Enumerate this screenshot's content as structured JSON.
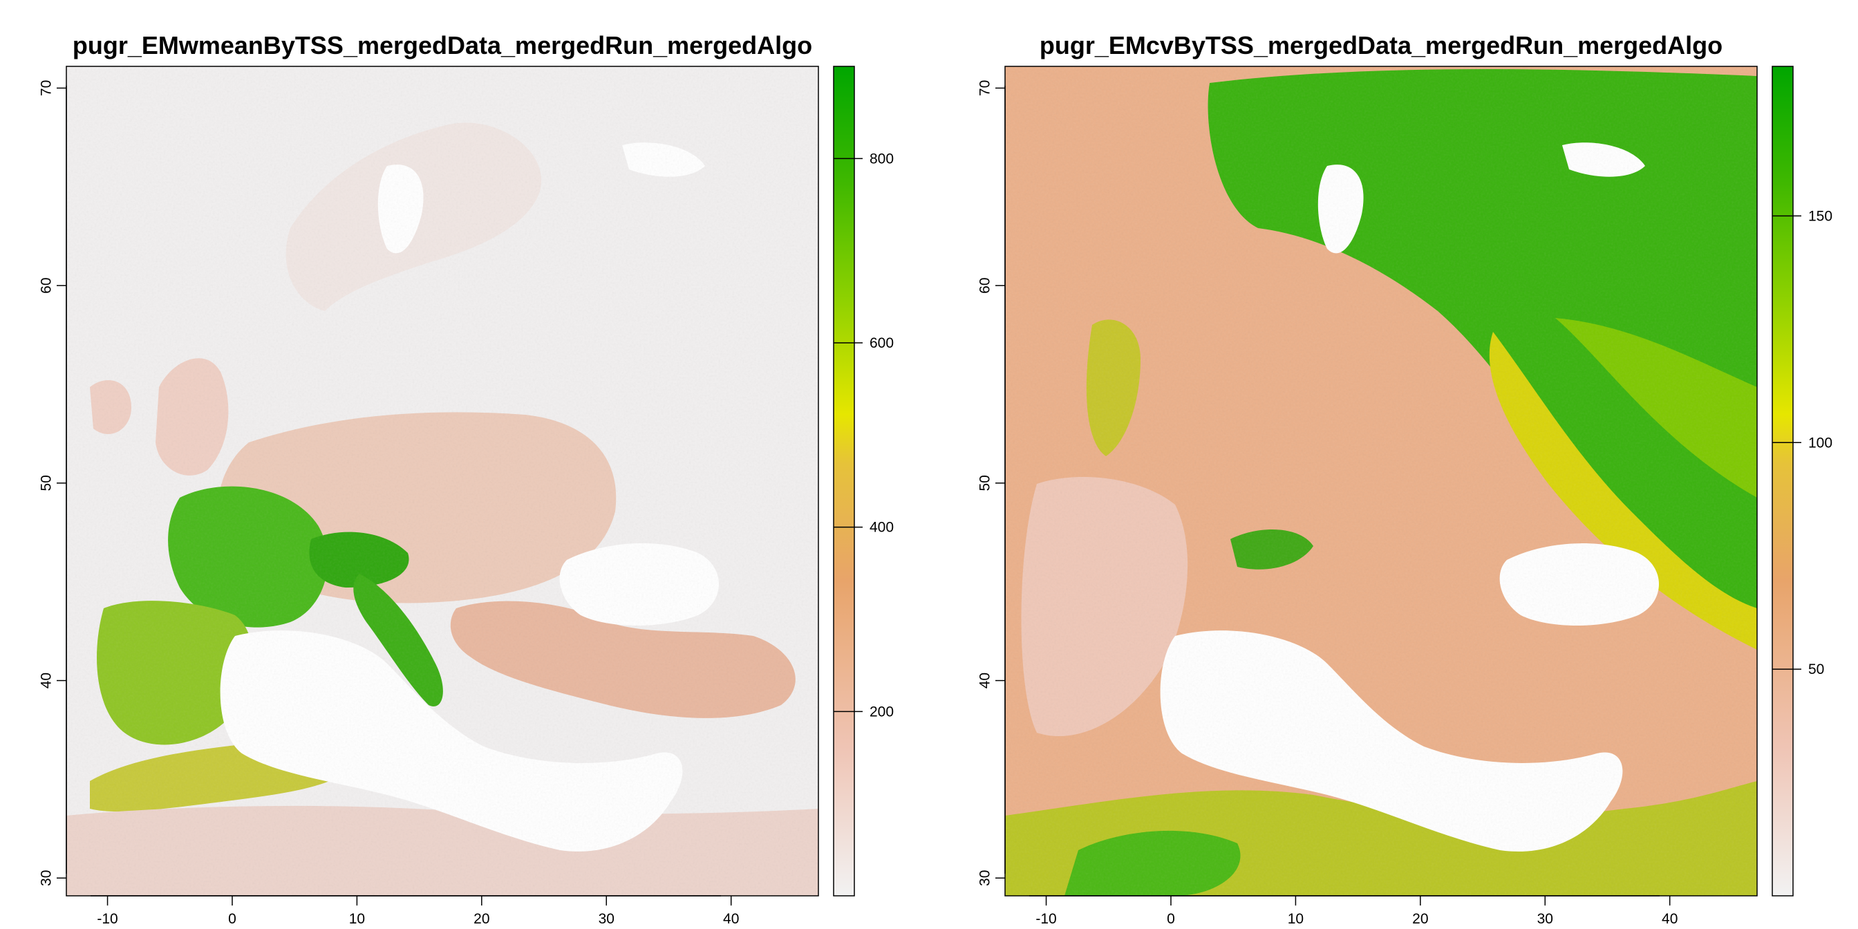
{
  "panels": [
    {
      "title": "pugr_EMwmeanByTSS_mergedData_mergedRun_mergedAlgo",
      "x_ticks": [
        "-10",
        "0",
        "10",
        "20",
        "30",
        "40"
      ],
      "y_ticks": [
        "30",
        "40",
        "50",
        "60",
        "70"
      ],
      "legend": {
        "ticks": [
          "200",
          "400",
          "600",
          "800"
        ],
        "colors": [
          "#f2f2f2",
          "#efc4b4",
          "#e8a46a",
          "#e6c23a",
          "#e6e600",
          "#8ed100",
          "#3fb800",
          "#00a600"
        ]
      }
    },
    {
      "title": "pugr_EMcvByTSS_mergedData_mergedRun_mergedAlgo",
      "x_ticks": [
        "-10",
        "0",
        "10",
        "20",
        "30",
        "40"
      ],
      "y_ticks": [
        "30",
        "40",
        "50",
        "60",
        "70"
      ],
      "legend": {
        "ticks": [
          "50",
          "100",
          "150"
        ],
        "colors": [
          "#f2f2f2",
          "#efc4b4",
          "#e8a46a",
          "#e6c23a",
          "#e6e600",
          "#8ed100",
          "#3fb800",
          "#00a600"
        ]
      }
    }
  ]
}
